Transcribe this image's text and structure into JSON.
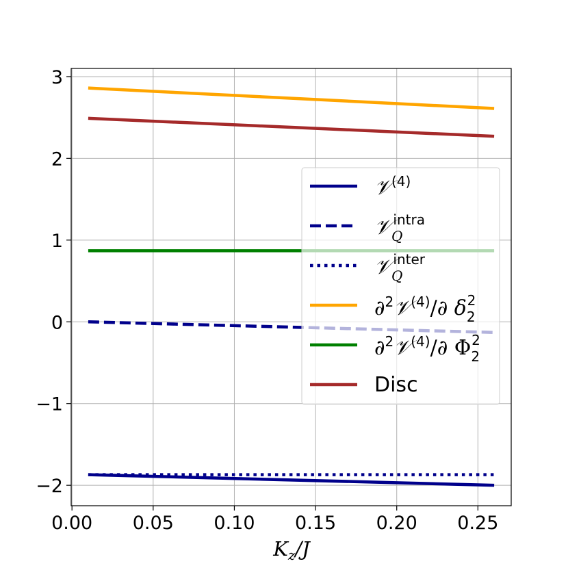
{
  "chart_data": {
    "type": "line",
    "xlabel": "K_z/J",
    "ylabel": "",
    "xlim": [
      -0.0005,
      0.2705
    ],
    "ylim": [
      -2.25,
      3.1
    ],
    "xticks": [
      0.0,
      0.05,
      0.1,
      0.15,
      0.2,
      0.25
    ],
    "xtick_labels": [
      "0.00",
      "0.05",
      "0.10",
      "0.15",
      "0.20",
      "0.25"
    ],
    "yticks": [
      -2,
      -1,
      0,
      1,
      2,
      3
    ],
    "ytick_labels": [
      "−2",
      "−1",
      "0",
      "1",
      "2",
      "3"
    ],
    "grid": true,
    "legend_position": "center-right",
    "series": [
      {
        "name": "V(4)",
        "color": "#00008b",
        "style": "solid",
        "x": [
          0.01,
          0.26
        ],
        "y": [
          -1.87,
          -2.0
        ]
      },
      {
        "name": "V_Q intra",
        "color": "#00008b",
        "style": "dashed",
        "x": [
          0.01,
          0.26
        ],
        "y": [
          0.0,
          -0.13
        ]
      },
      {
        "name": "V_Q inter",
        "color": "#00008b",
        "style": "dotted",
        "x": [
          0.01,
          0.26
        ],
        "y": [
          -1.87,
          -1.87
        ]
      },
      {
        "name": "∂²V(4)/∂δ₂²",
        "color": "#ffa500",
        "style": "solid",
        "x": [
          0.01,
          0.26
        ],
        "y": [
          2.86,
          2.61
        ]
      },
      {
        "name": "∂²V(4)/∂Φ₂²",
        "color": "#008000",
        "style": "solid",
        "x": [
          0.01,
          0.26
        ],
        "y": [
          0.87,
          0.87
        ]
      },
      {
        "name": "Disc",
        "color": "#a52a2a",
        "style": "solid",
        "x": [
          0.01,
          0.26
        ],
        "y": [
          2.49,
          2.27
        ]
      }
    ]
  }
}
